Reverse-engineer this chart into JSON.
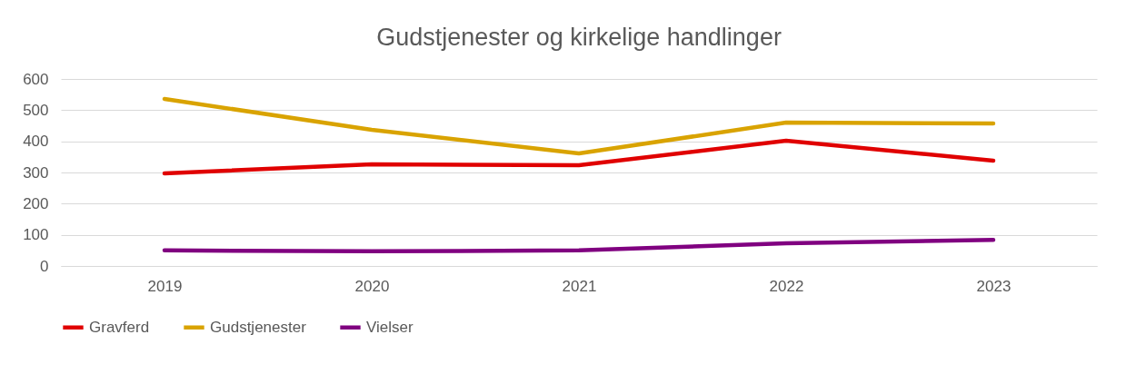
{
  "chart_data": {
    "type": "line",
    "title": "Gudstjenester og kirkelige handlinger",
    "categories": [
      "2019",
      "2020",
      "2021",
      "2022",
      "2023"
    ],
    "series": [
      {
        "name": "Gravferd",
        "color": "#e00000",
        "values": [
          297,
          326,
          323,
          402,
          338
        ]
      },
      {
        "name": "Gudstjenester",
        "color": "#d9a300",
        "values": [
          536,
          437,
          361,
          460,
          457
        ]
      },
      {
        "name": "Vielser",
        "color": "#800080",
        "values": [
          50,
          47,
          50,
          73,
          84
        ]
      }
    ],
    "ylim": [
      0,
      600
    ],
    "yticks": [
      0,
      100,
      200,
      300,
      400,
      500,
      600
    ],
    "grid": "y",
    "legend": "bottom",
    "marker": "none",
    "line_style": "solid"
  }
}
